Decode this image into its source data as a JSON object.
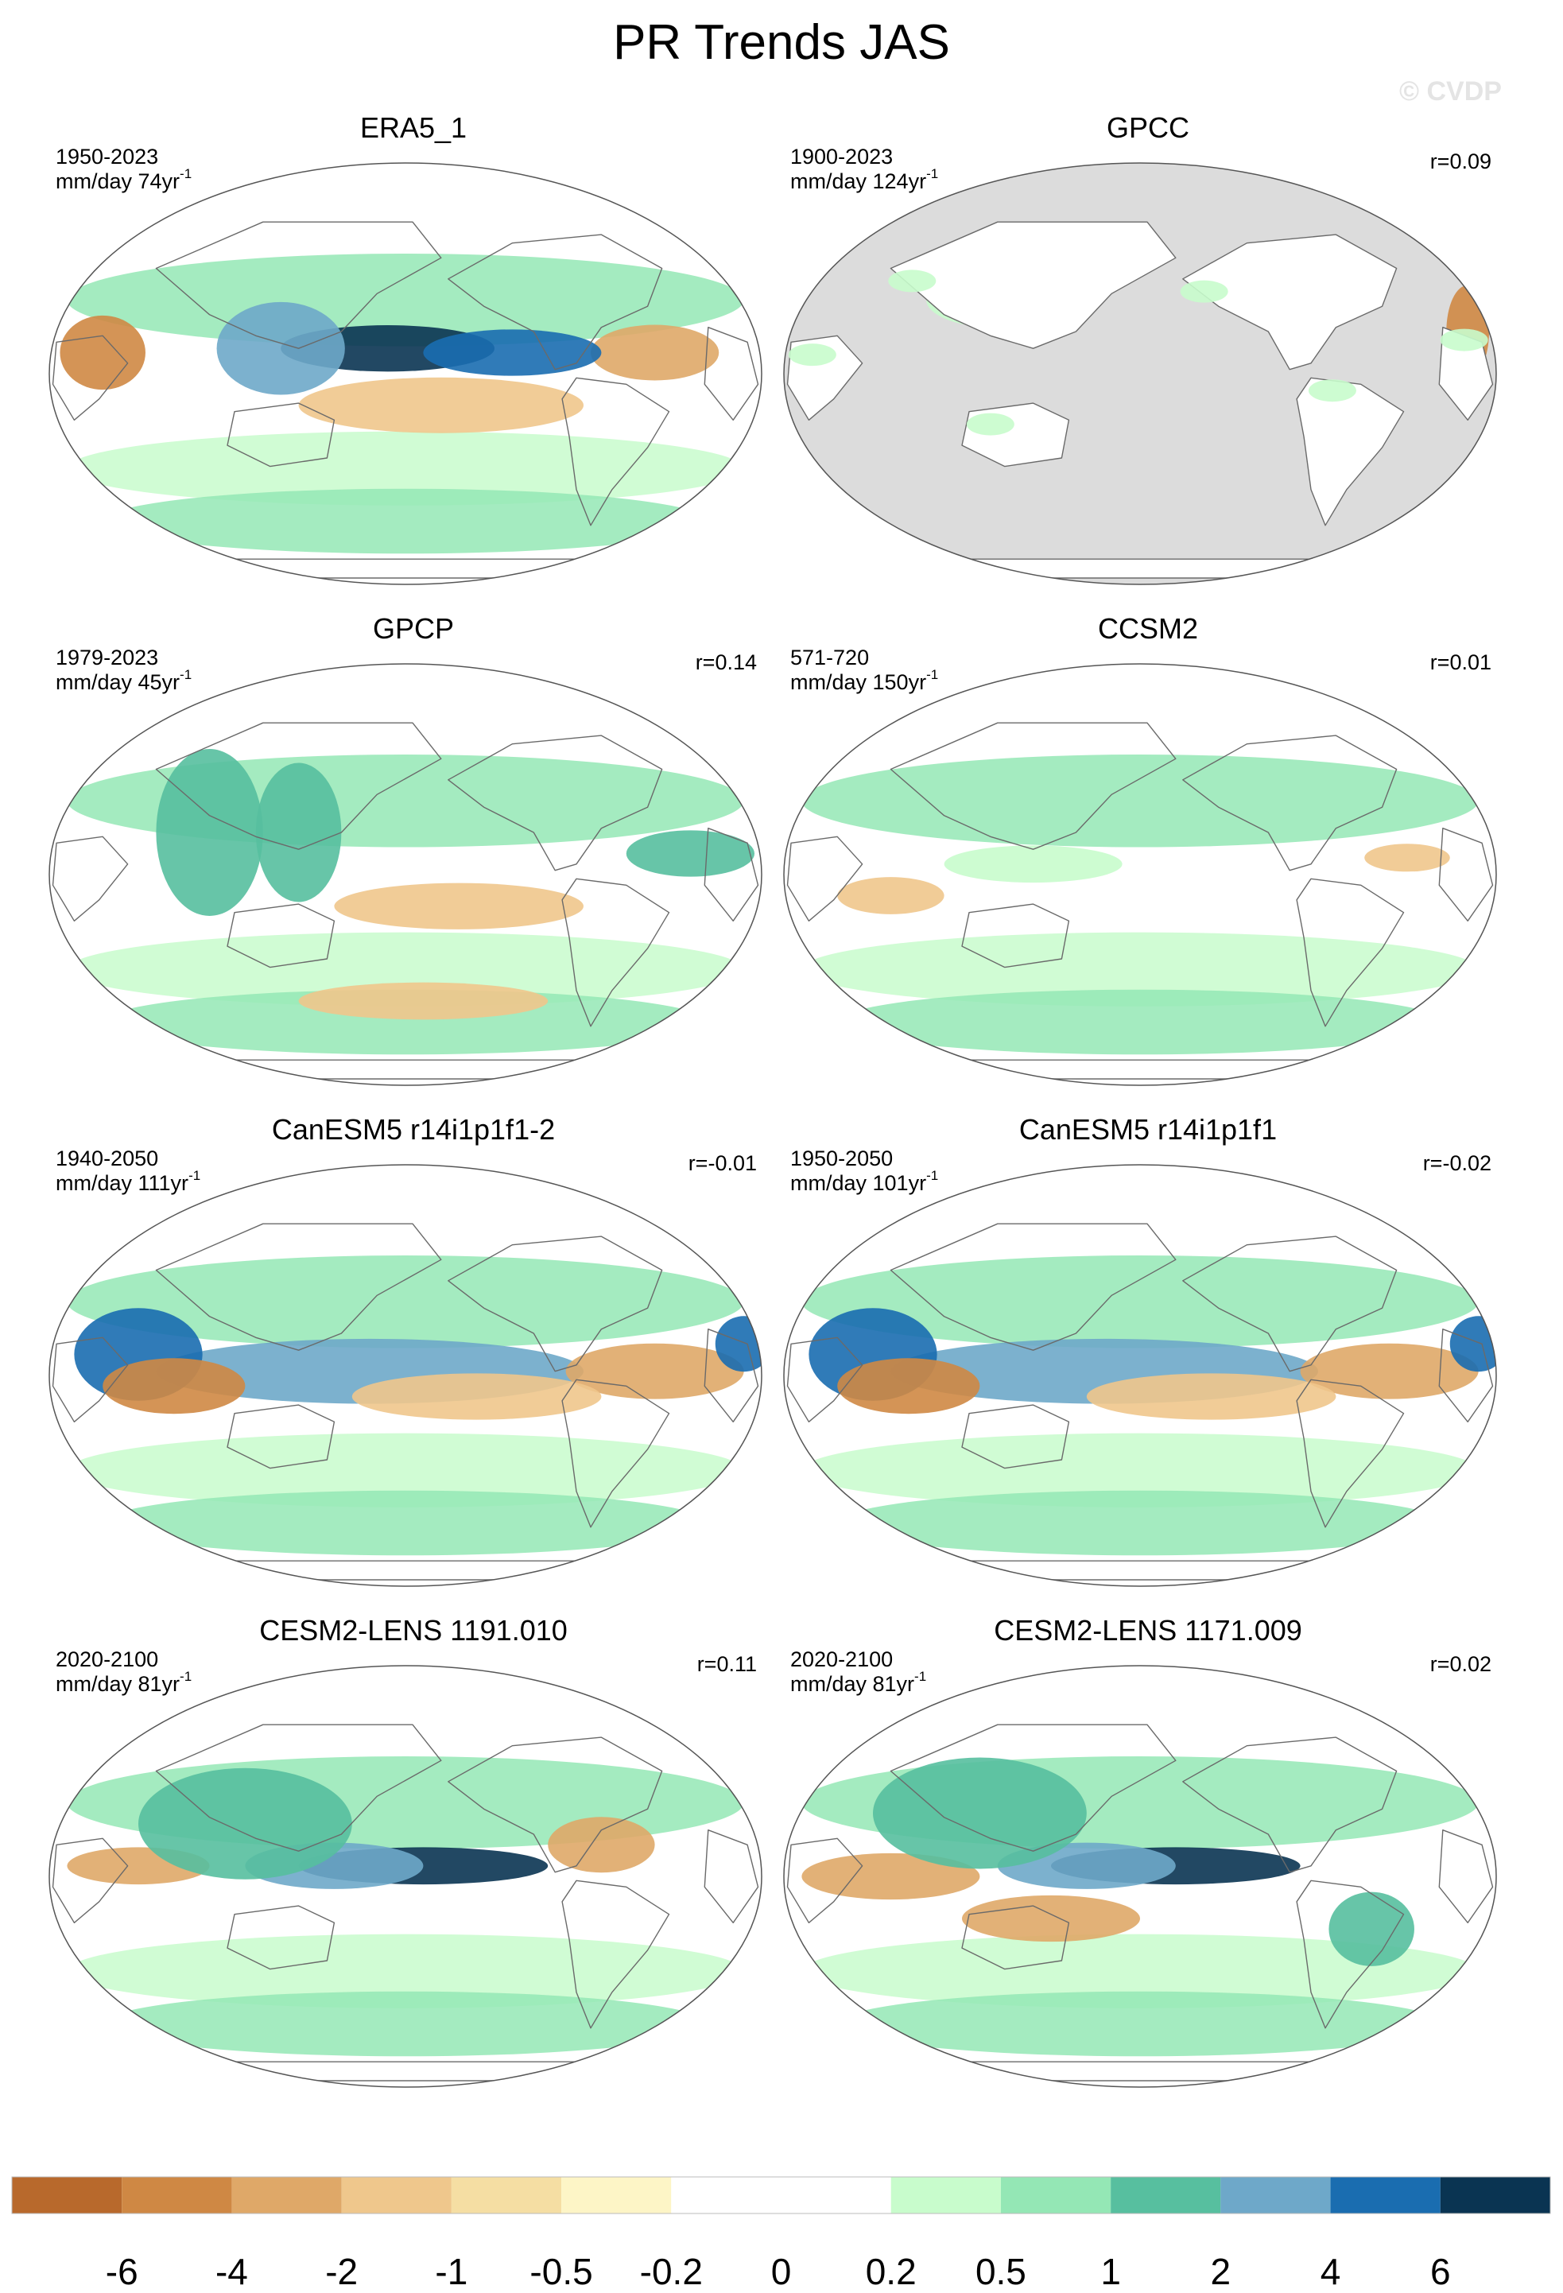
{
  "title": "PR Trends JAS",
  "watermark": "© CVDP",
  "panels": [
    {
      "title": "ERA5_1",
      "period": "1950-2023",
      "units": "mm/day 74yr",
      "units_exp": "-1",
      "r": "",
      "mask_ocean": false
    },
    {
      "title": "GPCC",
      "period": "1900-2023",
      "units": "mm/day 124yr",
      "units_exp": "-1",
      "r": "r=0.09",
      "mask_ocean": true
    },
    {
      "title": "GPCP",
      "period": "1979-2023",
      "units": "mm/day 45yr",
      "units_exp": "-1",
      "r": "r=0.14",
      "mask_ocean": false
    },
    {
      "title": "CCSM2",
      "period": "571-720",
      "units": "mm/day 150yr",
      "units_exp": "-1",
      "r": "r=0.01",
      "mask_ocean": false
    },
    {
      "title": "CanESM5 r14i1p1f1-2",
      "period": "1940-2050",
      "units": "mm/day 111yr",
      "units_exp": "-1",
      "r": "r=-0.01",
      "mask_ocean": false
    },
    {
      "title": "CanESM5 r14i1p1f1",
      "period": "1950-2050",
      "units": "mm/day 101yr",
      "units_exp": "-1",
      "r": "r=-0.02",
      "mask_ocean": false
    },
    {
      "title": "CESM2-LENS 1191.010",
      "period": "2020-2100",
      "units": "mm/day 81yr",
      "units_exp": "-1",
      "r": "r=0.11",
      "mask_ocean": false
    },
    {
      "title": "CESM2-LENS 1171.009",
      "period": "2020-2100",
      "units": "mm/day 81yr",
      "units_exp": "-1",
      "r": "r=0.02",
      "mask_ocean": false
    }
  ],
  "colorbar": {
    "labels": [
      "-6",
      "-4",
      "-2",
      "-1",
      "-0.5",
      "-0.2",
      "0",
      "0.2",
      "0.5",
      "1",
      "2",
      "4",
      "6"
    ],
    "colors": [
      "#b8692c",
      "#cf8844",
      "#dfa868",
      "#efc78c",
      "#f5dea3",
      "#fdf5c6",
      "#ffffff",
      "#ffffff",
      "#c8fccc",
      "#94e7b5",
      "#57bf9f",
      "#6ea8c9",
      "#1a6db0",
      "#0a3452"
    ]
  },
  "palette": {
    "ocean_mask": "#dcdcdc",
    "outline": "#555555",
    "coast": "#6a6a6a"
  }
}
